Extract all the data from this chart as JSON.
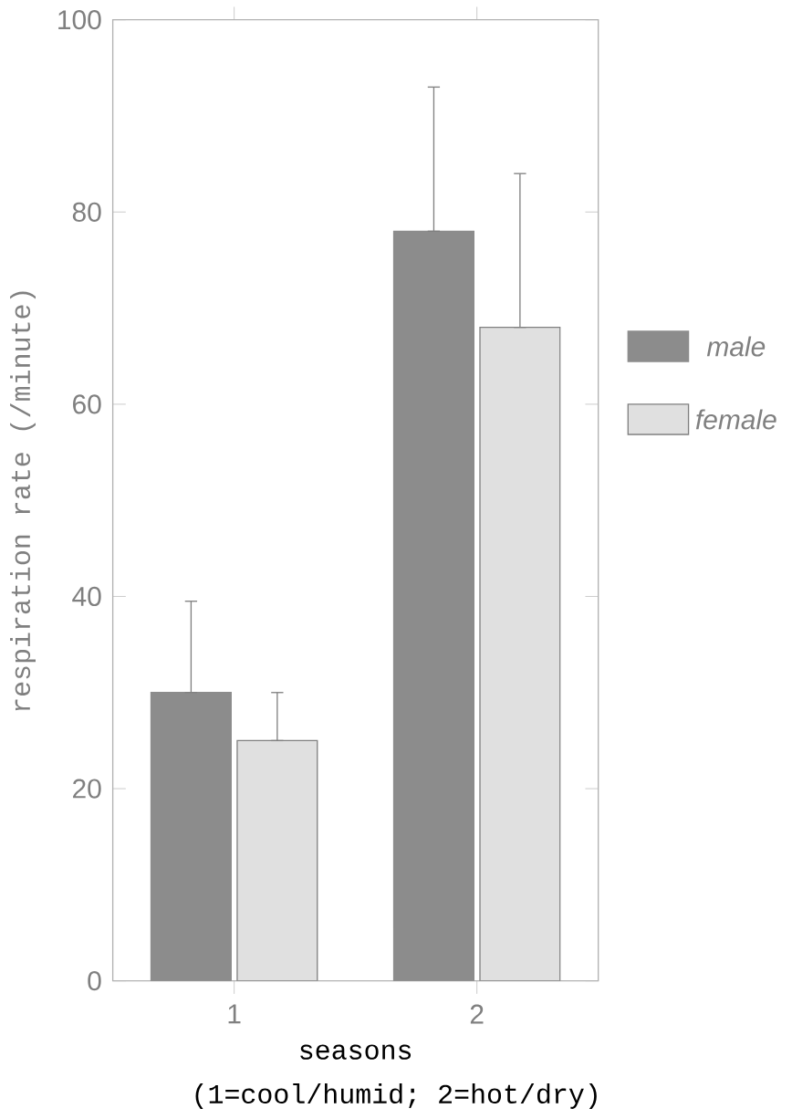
{
  "chart_data": {
    "type": "bar",
    "xlabel": "seasons",
    "ylabel": "respiration rate (/minute)",
    "categories": [
      "1",
      "2"
    ],
    "series": [
      {
        "name": "male",
        "color": "#8c8c8c",
        "values": [
          30,
          78
        ],
        "errors": [
          [
            30,
            39.5
          ],
          [
            78,
            93
          ]
        ]
      },
      {
        "name": "female",
        "color": "#e0e0e0",
        "values": [
          25,
          68
        ],
        "errors": [
          [
            25,
            30
          ],
          [
            68,
            84
          ]
        ]
      }
    ],
    "ylim": [
      0,
      100
    ],
    "yticks": [
      0,
      20,
      40,
      60,
      80,
      100
    ],
    "legend": "right",
    "grid": false,
    "annotations": [
      "(1=cool/humid; 2=hot/dry)"
    ]
  }
}
